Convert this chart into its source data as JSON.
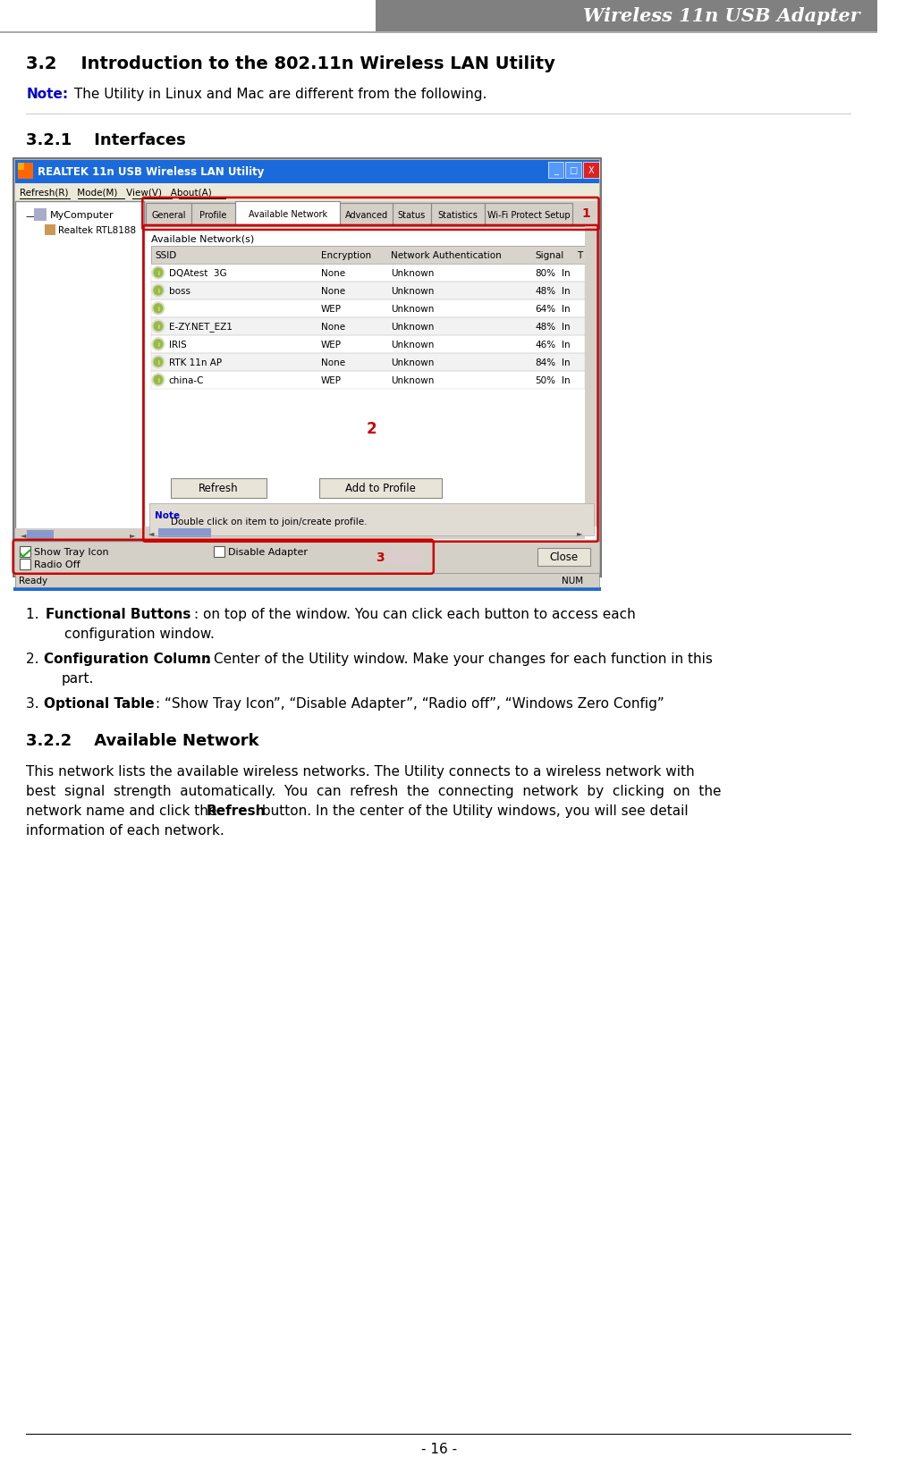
{
  "page_bg": "#ffffff",
  "header_bg": "#808080",
  "header_text": "Wireless 11n USB Adapter",
  "header_text_color": "#ffffff",
  "note_bold": "Note:",
  "note_rest": " The Utility in Linux and Mac are different from the following.",
  "footer_text": "- 16 -",
  "win_title": "REALTEK 11n USB Wireless LAN Utility",
  "win_title_bar_color": "#1a6adb",
  "win_menu": "Refresh(R)   Mode(M)   View(V)   About(A)",
  "tab_active": "Available Network",
  "tabs": [
    "General",
    "Profile",
    "Available Network",
    "Advanced",
    "Status",
    "Statistics",
    "Wi-Fi Protect Setup"
  ],
  "tab_widths": [
    52,
    50,
    120,
    60,
    44,
    62,
    100
  ],
  "tree_item1": "MyComputer",
  "tree_item2": "Realtek RTL8188",
  "network_headers": [
    "SSID",
    "Encryption",
    "Network Authentication",
    "Signal",
    "T"
  ],
  "networks": [
    [
      "DQAtest  3G",
      "None",
      "Unknown",
      "80%",
      "In"
    ],
    [
      "boss",
      "None",
      "Unknown",
      "48%",
      "In"
    ],
    [
      "",
      "WEP",
      "Unknown",
      "64%",
      "In"
    ],
    [
      "E-ZY.NET_EZ1",
      "None",
      "Unknown",
      "48%",
      "In"
    ],
    [
      "IRIS",
      "WEP",
      "Unknown",
      "46%",
      "In"
    ],
    [
      "RTK 11n AP",
      "None",
      "Unknown",
      "84%",
      "In"
    ],
    [
      "china-C",
      "WEP",
      "Unknown",
      "50%",
      "In"
    ]
  ],
  "red_color": "#cc0000",
  "note_color": "#0000cc",
  "win_outer_color": "#aaaaaa",
  "win_inner_bg": "#d4d0c8",
  "panel_bg": "#ffffff",
  "content_bg": "#ffffff",
  "tab_bg": "#d4d0c8",
  "tab_active_bg": "#ffffff",
  "menu_bar_bg": "#ece9d8",
  "status_bar_bg": "#d4d0c8",
  "tbl_header_bg": "#d8d4cc",
  "btn_bg": "#ece9d8",
  "note_area_bg": "#e8e8e0",
  "scrollbar_bg": "#d4d0c8",
  "win_blue_border": "#0000aa"
}
